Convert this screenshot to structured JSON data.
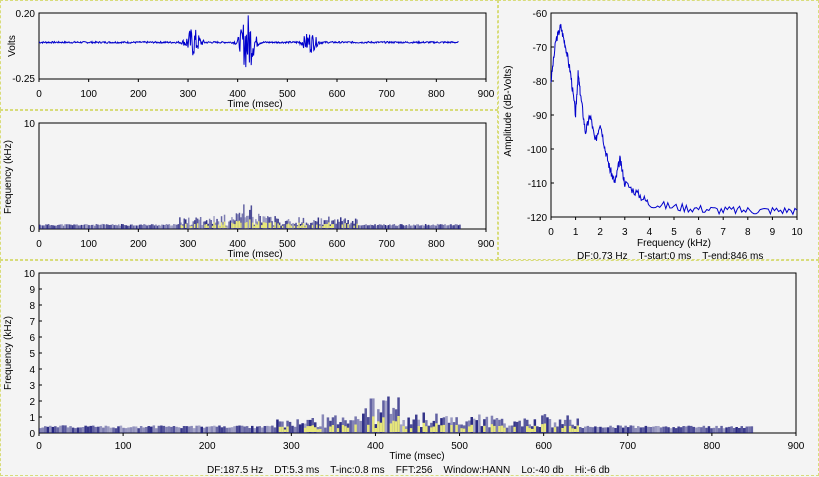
{
  "colors": {
    "signal": "#0000cc",
    "background": "#f4f4f4",
    "panel_border": "#d8dc7a",
    "spectrogram_dark": "#1a1a7a",
    "spectrogram_hot": "#e6e67a"
  },
  "waveform": {
    "ylabel": "Volts",
    "xlabel": "Time (msec)",
    "y_ticks": [
      "0.20",
      "-0.25"
    ],
    "x_ticks": [
      "0",
      "100",
      "200",
      "300",
      "400",
      "500",
      "600",
      "700",
      "800",
      "900"
    ]
  },
  "spectrogram_top": {
    "ylabel": "Frequency (kHz)",
    "xlabel": "Time (msec)",
    "y_ticks": [
      "10",
      "0"
    ],
    "x_ticks": [
      "0",
      "100",
      "200",
      "300",
      "400",
      "500",
      "600",
      "700",
      "800",
      "900"
    ]
  },
  "spectrum": {
    "ylabel": "Amplitude (dB-Volts)",
    "xlabel": "Frequency (kHz)",
    "y_ticks": [
      "-60",
      "-70",
      "-80",
      "-90",
      "-100",
      "-110",
      "-120"
    ],
    "x_ticks": [
      "0",
      "1",
      "2",
      "3",
      "4",
      "5",
      "6",
      "7",
      "8",
      "9",
      "10"
    ],
    "footer": "DF:0.73 Hz    T-start:0 ms    T-end:846 ms"
  },
  "spectrogram_main": {
    "ylabel": "Frequency (kHz)",
    "xlabel": "Time (msec)",
    "y_ticks": [
      "10",
      "9",
      "8",
      "7",
      "6",
      "5",
      "4",
      "3",
      "2",
      "1",
      "0"
    ],
    "x_ticks": [
      "0",
      "100",
      "200",
      "300",
      "400",
      "500",
      "600",
      "700",
      "800",
      "900"
    ],
    "footer": "DF:187.5 Hz    DT:5.3 ms    T-inc:0.8 ms    FFT:256    Window:HANN    Lo:-40 db    Hi:-6 db"
  },
  "chart_data": [
    {
      "type": "line",
      "title": "",
      "xlabel": "Time (msec)",
      "ylabel": "Volts",
      "xlim": [
        0,
        900
      ],
      "ylim": [
        -0.25,
        0.2
      ],
      "signal_span_msec": [
        0,
        846
      ],
      "bursts": [
        {
          "center_msec": 310,
          "amplitude": 0.1
        },
        {
          "center_msec": 420,
          "amplitude": 0.2
        },
        {
          "center_msec": 545,
          "amplitude": 0.07
        }
      ]
    },
    {
      "type": "heatmap",
      "title": "",
      "xlabel": "Time (msec)",
      "ylabel": "Frequency (kHz)",
      "xlim": [
        0,
        900
      ],
      "ylim": [
        0,
        10
      ]
    },
    {
      "type": "line",
      "title": "",
      "xlabel": "Frequency (kHz)",
      "ylabel": "Amplitude (dB-Volts)",
      "xlim": [
        0,
        10
      ],
      "ylim": [
        -120,
        -60
      ],
      "x": [
        0,
        0.2,
        0.4,
        0.6,
        0.8,
        1.0,
        1.1,
        1.2,
        1.4,
        1.6,
        1.8,
        2.0,
        2.2,
        2.4,
        2.6,
        2.8,
        3.0,
        3.5,
        4.0,
        5.0,
        6.0,
        7.0,
        8.0,
        9.0,
        10.0
      ],
      "y": [
        -80,
        -68,
        -64,
        -70,
        -78,
        -90,
        -78,
        -84,
        -95,
        -90,
        -98,
        -92,
        -100,
        -106,
        -110,
        -103,
        -110,
        -113,
        -116,
        -117,
        -117.5,
        -118,
        -118,
        -118,
        -118
      ]
    },
    {
      "type": "heatmap",
      "title": "",
      "xlabel": "Time (msec)",
      "ylabel": "Frequency (kHz)",
      "xlim": [
        0,
        900
      ],
      "ylim": [
        0,
        10
      ]
    }
  ]
}
